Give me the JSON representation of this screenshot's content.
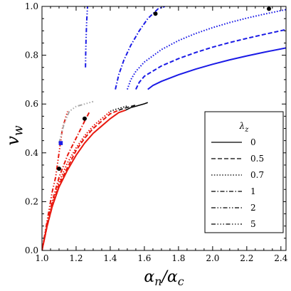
{
  "chart_data": {
    "type": "line",
    "title": "",
    "xlabel": "α_n/α_c",
    "ylabel": "v_w",
    "xlim": [
      1.0,
      2.43
    ],
    "ylim": [
      0.0,
      1.0
    ],
    "x_ticks": [
      1.0,
      1.2,
      1.4,
      1.6,
      1.8,
      2.0,
      2.2,
      2.4
    ],
    "x_tick_labels": [
      "1.0",
      "1.2",
      "1.4",
      "1.6",
      "1.8",
      "2.0",
      "2.2",
      "2.4"
    ],
    "y_ticks": [
      0.0,
      0.2,
      0.4,
      0.6,
      0.8,
      1.0
    ],
    "y_tick_labels": [
      "0.0",
      "0.2",
      "0.4",
      "0.6",
      "0.8",
      "1.0"
    ],
    "grid": false,
    "legend": {
      "title_main": "λ",
      "title_sub": "z",
      "placement": "bottom-right",
      "entries": [
        {
          "label": "0",
          "dash": "solid"
        },
        {
          "label": "0.5",
          "dash": "dashed"
        },
        {
          "label": "0.7",
          "dash": "dotted"
        },
        {
          "label": "1",
          "dash": "dashdot"
        },
        {
          "label": "2",
          "dash": "dashdotdot"
        },
        {
          "label": "5",
          "dash": "dashdotdotdot"
        }
      ]
    },
    "series": [
      {
        "color": "#e8190f",
        "dash": "solid",
        "x": [
          1.0,
          1.03,
          1.06,
          1.1,
          1.15,
          1.2,
          1.25,
          1.3,
          1.35,
          1.4,
          1.45,
          1.49
        ],
        "y": [
          0.0,
          0.1,
          0.18,
          0.26,
          0.33,
          0.39,
          0.44,
          0.48,
          0.51,
          0.54,
          0.565,
          0.575
        ]
      },
      {
        "color": "#e8190f",
        "dash": "dashed",
        "x": [
          1.0,
          1.03,
          1.06,
          1.1,
          1.15,
          1.2,
          1.25,
          1.3,
          1.35,
          1.4,
          1.45
        ],
        "y": [
          0.0,
          0.1,
          0.18,
          0.27,
          0.34,
          0.41,
          0.46,
          0.5,
          0.53,
          0.56,
          0.575
        ]
      },
      {
        "color": "#e8190f",
        "dash": "dotted",
        "x": [
          1.0,
          1.03,
          1.06,
          1.1,
          1.15,
          1.2,
          1.25,
          1.3,
          1.35,
          1.4
        ],
        "y": [
          0.0,
          0.1,
          0.19,
          0.28,
          0.36,
          0.42,
          0.47,
          0.51,
          0.54,
          0.57
        ]
      },
      {
        "color": "#e8190f",
        "dash": "dashdot",
        "x": [
          1.0,
          1.03,
          1.06,
          1.1,
          1.15,
          1.2,
          1.25,
          1.28
        ],
        "y": [
          0.0,
          0.11,
          0.2,
          0.3,
          0.39,
          0.46,
          0.53,
          0.57
        ]
      },
      {
        "color": "#e8190f",
        "dash": "dashdotdot",
        "x": [
          1.0,
          1.03,
          1.06,
          1.08,
          1.1,
          1.12,
          1.15
        ],
        "y": [
          0.0,
          0.12,
          0.24,
          0.3,
          0.4,
          0.5,
          0.57
        ]
      },
      {
        "color": "#aaaaaa",
        "dash": "dashdotdotdot",
        "x": [
          1.1,
          1.13,
          1.16,
          1.2,
          1.25,
          1.3
        ],
        "y": [
          0.44,
          0.52,
          0.57,
          0.59,
          0.6,
          0.61
        ]
      },
      {
        "color": "#000000",
        "dash": "solid",
        "x": [
          1.49,
          1.52,
          1.56,
          1.6,
          1.62
        ],
        "y": [
          0.575,
          0.585,
          0.593,
          0.601,
          0.606
        ]
      },
      {
        "color": "#000000",
        "dash": "dashed",
        "x": [
          1.45,
          1.48,
          1.51,
          1.55
        ],
        "y": [
          0.575,
          0.582,
          0.588,
          0.596
        ]
      },
      {
        "color": "#000000",
        "dash": "dotted",
        "x": [
          1.4,
          1.43,
          1.46,
          1.5
        ],
        "y": [
          0.57,
          0.578,
          0.584,
          0.592
        ]
      },
      {
        "color": "#1a1ae6",
        "dash": "solid",
        "x": [
          1.62,
          1.65,
          1.7,
          1.8,
          1.9,
          2.0,
          2.1,
          2.2,
          2.3,
          2.43
        ],
        "y": [
          0.66,
          0.676,
          0.693,
          0.72,
          0.743,
          0.763,
          0.781,
          0.797,
          0.812,
          0.83
        ]
      },
      {
        "color": "#1a1ae6",
        "dash": "dashed",
        "x": [
          1.55,
          1.57,
          1.6,
          1.7,
          1.8,
          1.9,
          2.0,
          2.1,
          2.2,
          2.3,
          2.43
        ],
        "y": [
          0.66,
          0.689,
          0.714,
          0.756,
          0.786,
          0.811,
          0.833,
          0.852,
          0.869,
          0.885,
          0.905
        ]
      },
      {
        "color": "#1a1ae6",
        "dash": "dotted",
        "x": [
          1.5,
          1.52,
          1.55,
          1.6,
          1.7,
          1.8,
          1.9,
          2.0,
          2.1,
          2.2,
          2.3,
          2.43
        ],
        "y": [
          0.66,
          0.699,
          0.734,
          0.772,
          0.823,
          0.86,
          0.889,
          0.913,
          0.934,
          0.952,
          0.968,
          0.987
        ]
      },
      {
        "color": "#1a1ae6",
        "dash": "dashdot",
        "x": [
          1.43,
          1.45,
          1.48,
          1.52,
          1.57,
          1.62,
          1.68,
          1.72
        ],
        "y": [
          0.66,
          0.72,
          0.78,
          0.84,
          0.9,
          0.95,
          0.99,
          1.0
        ]
      },
      {
        "color": "#1a1ae6",
        "dash": "dashdotdot",
        "x": [
          1.255,
          1.256,
          1.258,
          1.262,
          1.267
        ],
        "y": [
          0.75,
          0.8,
          0.86,
          0.94,
          1.0
        ]
      }
    ],
    "markers": [
      {
        "x": 1.1,
        "y": 0.335,
        "color": "#000000",
        "shape": "circle"
      },
      {
        "x": 1.11,
        "y": 0.44,
        "color": "#1a1ae6",
        "shape": "square"
      },
      {
        "x": 1.25,
        "y": 0.54,
        "color": "#000000",
        "shape": "circle"
      },
      {
        "x": 1.665,
        "y": 0.97,
        "color": "#000000",
        "shape": "circle"
      },
      {
        "x": 2.33,
        "y": 0.99,
        "color": "#000000",
        "shape": "circle"
      }
    ]
  }
}
